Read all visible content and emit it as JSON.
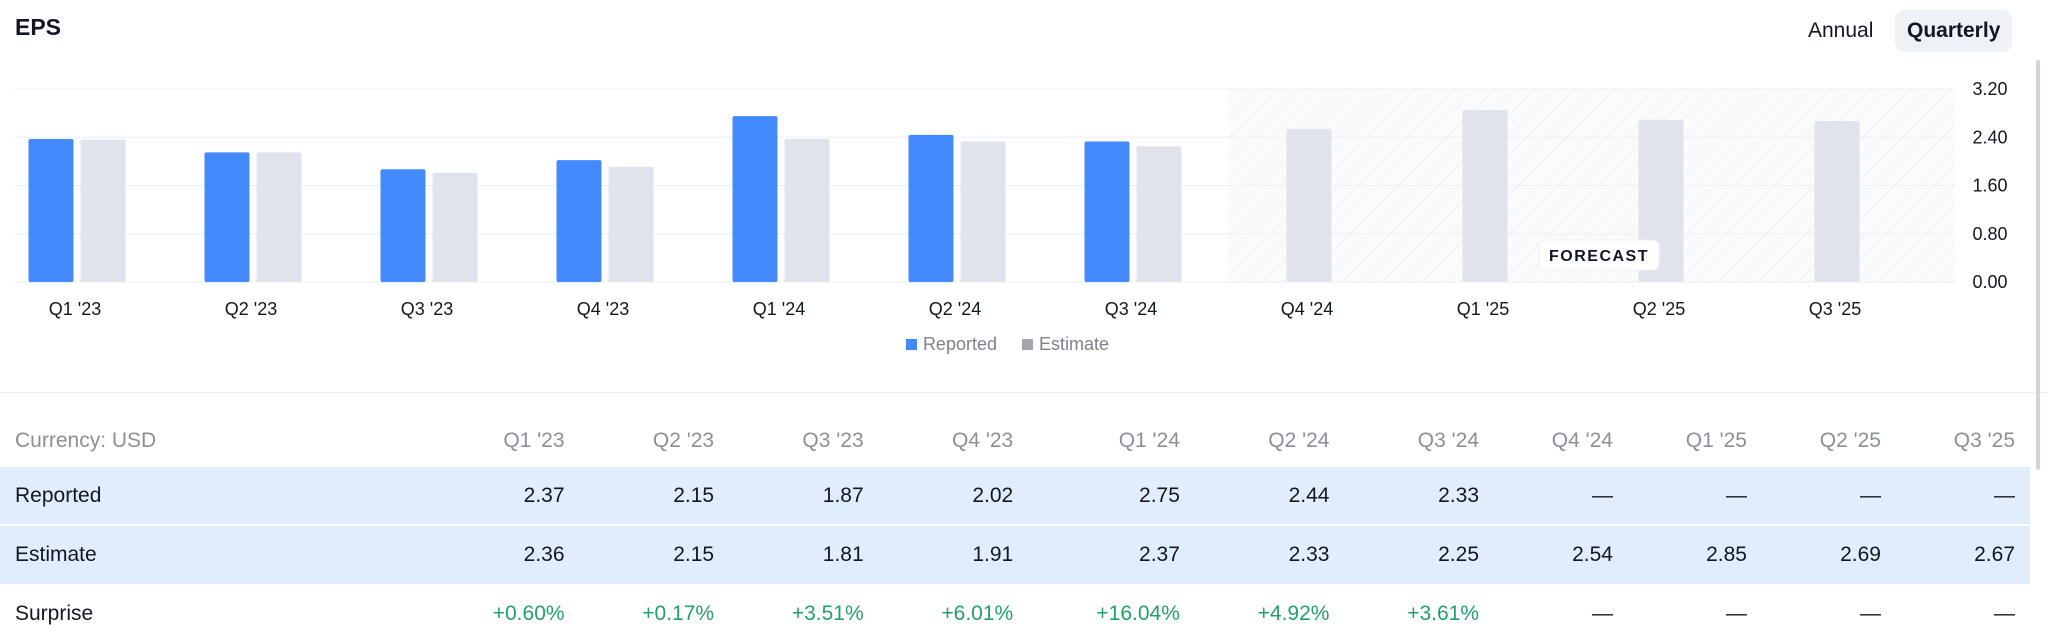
{
  "header": {
    "title": "EPS",
    "annual_label": "Annual",
    "quarterly_label": "Quarterly"
  },
  "chart_data": {
    "type": "bar",
    "categories": [
      "Q1 '23",
      "Q2 '23",
      "Q3 '23",
      "Q4 '23",
      "Q1 '24",
      "Q2 '24",
      "Q3 '24",
      "Q4 '24",
      "Q1 '25",
      "Q2 '25",
      "Q3 '25"
    ],
    "series": [
      {
        "name": "Reported",
        "color": "#448aff",
        "values": [
          2.37,
          2.15,
          1.87,
          2.02,
          2.75,
          2.44,
          2.33,
          null,
          null,
          null,
          null
        ]
      },
      {
        "name": "Estimate",
        "color": "#e0e3eb",
        "values": [
          2.36,
          2.15,
          1.81,
          1.91,
          2.37,
          2.33,
          2.25,
          2.54,
          2.85,
          2.69,
          2.67
        ]
      }
    ],
    "yticks": [
      "3.20",
      "2.40",
      "1.60",
      "0.80",
      "0.00"
    ],
    "ylim": [
      0,
      3.2
    ],
    "forecast_start_index": 7,
    "forecast_label": "FORECAST",
    "legend": [
      "Reported",
      "Estimate"
    ],
    "legend_position": "bottom-center",
    "grid": true
  },
  "table": {
    "currency_label": "Currency: USD",
    "columns": [
      "Q1 '23",
      "Q2 '23",
      "Q3 '23",
      "Q4 '23",
      "Q1 '24",
      "Q2 '24",
      "Q3 '24",
      "Q4 '24",
      "Q1 '25",
      "Q2 '25",
      "Q3 '25"
    ],
    "rows": [
      {
        "label": "Reported",
        "cells": [
          "2.37",
          "2.15",
          "1.87",
          "2.02",
          "2.75",
          "2.44",
          "2.33",
          "—",
          "—",
          "—",
          "—"
        ]
      },
      {
        "label": "Estimate",
        "cells": [
          "2.36",
          "2.15",
          "1.81",
          "1.91",
          "2.37",
          "2.33",
          "2.25",
          "2.54",
          "2.85",
          "2.69",
          "2.67"
        ]
      },
      {
        "label": "Surprise",
        "cells": [
          "+0.60%",
          "+0.17%",
          "+3.51%",
          "+6.01%",
          "+16.04%",
          "+4.92%",
          "+3.61%",
          "—",
          "—",
          "—",
          "—"
        ]
      }
    ]
  },
  "colors": {
    "reported": "#448aff",
    "estimate": "#e0e3eb",
    "surprise_positive": "#22a06b",
    "row_highlight": "#e0edfc"
  }
}
